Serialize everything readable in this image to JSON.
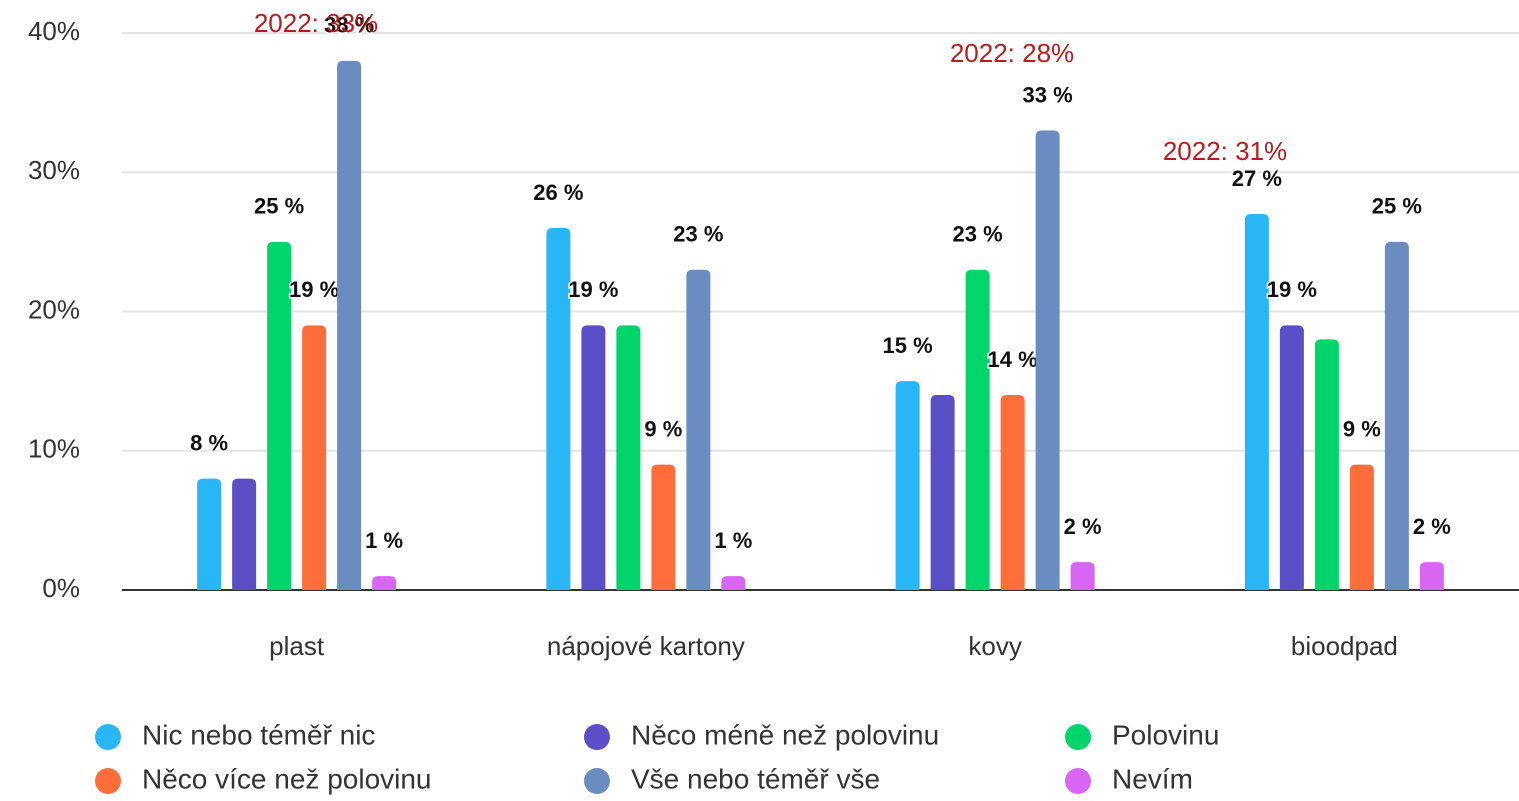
{
  "chart_data": {
    "type": "bar",
    "categories": [
      "plast",
      "nápojové kartony",
      "kovy",
      "bioodpad"
    ],
    "series": [
      {
        "name": "Nic nebo téměř nic",
        "color": "#29b6f6",
        "values": [
          8,
          26,
          15,
          27
        ],
        "value_labels": [
          "8 %",
          "26 %",
          "15 %",
          "27 %"
        ]
      },
      {
        "name": "Něco méně než polovinu",
        "color": "#5b4fc7",
        "values": [
          8,
          19,
          14,
          19
        ],
        "value_labels": [
          null,
          "19 %",
          null,
          "19 %"
        ]
      },
      {
        "name": "Polovinu",
        "color": "#00d46a",
        "values": [
          25,
          19,
          23,
          18
        ],
        "value_labels": [
          "25 %",
          null,
          "23 %",
          null
        ]
      },
      {
        "name": "Něco více než polovinu",
        "color": "#ff6d3a",
        "values": [
          19,
          9,
          14,
          9
        ],
        "value_labels": [
          "19 %",
          "9 %",
          "14 %",
          "9 %"
        ]
      },
      {
        "name": "Vše nebo téměř vše",
        "color": "#6b8cc0",
        "values": [
          38,
          23,
          33,
          25
        ],
        "value_labels": [
          "38 %",
          "23 %",
          "33 %",
          "25 %"
        ]
      },
      {
        "name": "Nevím",
        "color": "#d866f2",
        "values": [
          1,
          1,
          2,
          2
        ],
        "value_labels": [
          "1 %",
          "1 %",
          "2 %",
          "2 %"
        ]
      }
    ],
    "annotations": [
      "2022: 33%",
      "2022: 28%",
      "2022: 31%"
    ],
    "ylim": [
      0,
      40
    ],
    "yticks": [
      {
        "value": 0,
        "label": "0%"
      },
      {
        "value": 10,
        "label": "10%"
      },
      {
        "value": 20,
        "label": "20%"
      },
      {
        "value": 30,
        "label": "30%"
      },
      {
        "value": 40,
        "label": "40%"
      }
    ],
    "grid": true,
    "legend": "bottom"
  }
}
